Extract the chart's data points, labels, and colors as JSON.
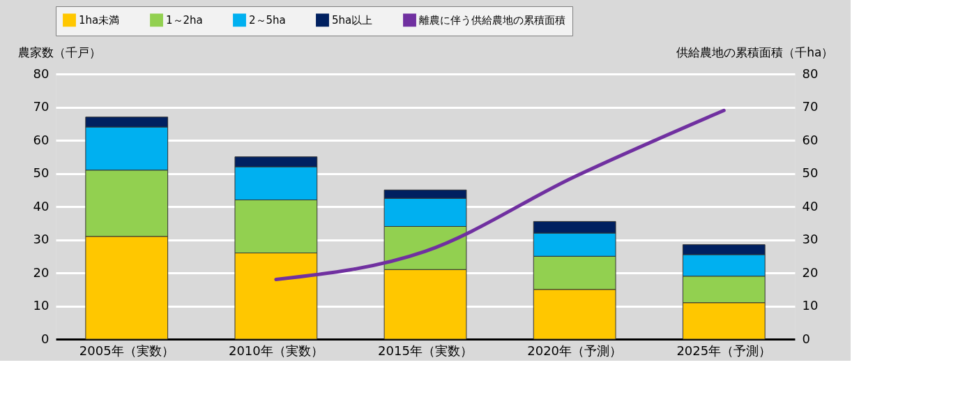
{
  "chart_data": {
    "type": "bar",
    "stacked": true,
    "categories": [
      "2005年（実数）",
      "2010年（実数）",
      "2015年（実数）",
      "2020年（予測）",
      "2025年（予測）"
    ],
    "ylabel": "農家数（千戸）",
    "y2label": "供給農地の累積面積（千ha）",
    "series": [
      {
        "name": "1ha未満",
        "color": "#ffc700",
        "values": [
          31,
          26,
          21,
          15,
          11
        ]
      },
      {
        "name": "1～2ha",
        "color": "#92d050",
        "values": [
          20,
          16,
          13,
          10,
          8
        ]
      },
      {
        "name": "2～5ha",
        "color": "#00b0f0",
        "values": [
          13,
          10,
          8.5,
          7,
          6.5
        ]
      },
      {
        "name": "5ha以上",
        "color": "#002060",
        "values": [
          3,
          3,
          2.5,
          3.5,
          3
        ]
      },
      {
        "name": "離農に伴う供給農地の累積面積",
        "color": "#7030a0",
        "type": "line",
        "axis": "y2",
        "values": [
          null,
          18,
          26.5,
          49,
          69
        ]
      }
    ],
    "ylim": [
      0,
      80
    ],
    "yticks": [
      0,
      10,
      20,
      30,
      40,
      50,
      60,
      70,
      80
    ],
    "y2lim": [
      0,
      80
    ],
    "y2ticks": [
      0,
      10,
      20,
      30,
      40,
      50,
      60,
      70,
      80
    ],
    "grid": "y",
    "legend": "top"
  }
}
